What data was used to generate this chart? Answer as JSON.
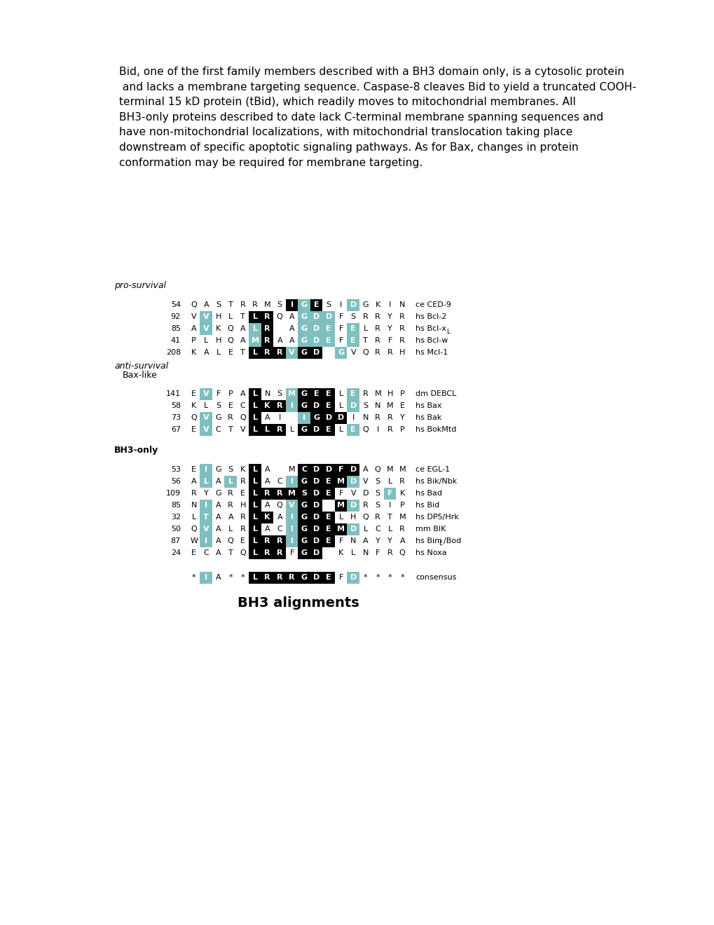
{
  "paragraph": "Bid, one of the first family members described with a BH3 domain only, is a cytosolic protein\n and lacks a membrane targeting sequence. Caspase-8 cleaves Bid to yield a truncated COOH-\nterminal 15 kD protein (tBid), which readily moves to mitochondrial membranes. All\nBH3-only proteins described to date lack C-terminal membrane spanning sequences and\nhave non-mitochondrial localizations, with mitochondrial translocation taking place\ndownstream of specific apoptotic signaling pathways. As for Bax, changes in protein\nconformation may be required for membrane targeting.",
  "title": "BH3 alignments",
  "rows": [
    {
      "num": "54",
      "seq": [
        "Q",
        "A",
        "S",
        "T",
        "R",
        "R",
        "M",
        "S",
        "I",
        "G",
        "E",
        "S",
        "I",
        "D",
        "G",
        "K",
        "I",
        "N"
      ],
      "label": "ce CED-9",
      "colors": [
        "",
        "",
        "",
        "",
        "",
        "",
        "",
        "",
        "k",
        "teal",
        "k",
        "",
        "",
        "teal",
        "",
        "",
        "",
        ""
      ]
    },
    {
      "num": "92",
      "seq": [
        "V",
        "V",
        "H",
        "L",
        "T",
        "L",
        "R",
        "Q",
        "A",
        "G",
        "D",
        "D",
        "F",
        "S",
        "R",
        "R",
        "Y",
        "R"
      ],
      "label": "hs Bcl-2",
      "colors": [
        "",
        "teal",
        "",
        "",
        "",
        "k",
        "k",
        "",
        "",
        "teal",
        "teal",
        "teal",
        "",
        "",
        "",
        "",
        "",
        ""
      ]
    },
    {
      "num": "85",
      "seq": [
        "A",
        "V",
        "K",
        "Q",
        "A",
        "L",
        "R",
        " ",
        "A",
        "G",
        "D",
        "E",
        "F",
        "E",
        "L",
        "R",
        "Y",
        "R"
      ],
      "label": "hs Bcl-xL",
      "colors": [
        "",
        "teal",
        "",
        "",
        "",
        "teal",
        "k",
        "",
        "",
        "teal",
        "teal",
        "teal",
        "",
        "teal",
        "",
        "",
        "",
        ""
      ]
    },
    {
      "num": "41",
      "seq": [
        "P",
        "L",
        "H",
        "Q",
        "A",
        "M",
        "R",
        "A",
        "A",
        "G",
        "D",
        "E",
        "F",
        "E",
        "T",
        "R",
        "F",
        "R"
      ],
      "label": "hs Bcl-w",
      "colors": [
        "",
        "",
        "",
        "",
        "",
        "teal",
        "k",
        "",
        "",
        "teal",
        "teal",
        "teal",
        "",
        "teal",
        "",
        "",
        "",
        ""
      ]
    },
    {
      "num": "208",
      "seq": [
        "K",
        "A",
        "L",
        "E",
        "T",
        "L",
        "R",
        "R",
        "V",
        "G",
        "D",
        " ",
        "G",
        "V",
        "Q",
        "R",
        "R",
        "H"
      ],
      "label": "hs Mcl-1",
      "colors": [
        "",
        "",
        "",
        "",
        "",
        "k",
        "k",
        "k",
        "teal",
        "k",
        "k",
        "",
        "teal",
        "",
        "",
        "",
        "",
        ""
      ]
    },
    {
      "num": "141",
      "seq": [
        "E",
        "V",
        "F",
        "P",
        "A",
        "L",
        "N",
        "S",
        "M",
        "G",
        "E",
        "E",
        "L",
        "E",
        "R",
        "M",
        "H",
        "P"
      ],
      "label": "dm DEBCL",
      "colors": [
        "",
        "teal",
        "",
        "",
        "",
        "k",
        "",
        "",
        "teal",
        "k",
        "k",
        "k",
        "",
        "teal",
        "",
        "",
        "",
        ""
      ]
    },
    {
      "num": "58",
      "seq": [
        "K",
        "L",
        "S",
        "E",
        "C",
        "L",
        "K",
        "R",
        "I",
        "G",
        "D",
        "E",
        "L",
        "D",
        "S",
        "N",
        "M",
        "E"
      ],
      "label": "hs Bax",
      "colors": [
        "",
        "",
        "",
        "",
        "",
        "k",
        "k",
        "k",
        "teal",
        "k",
        "k",
        "k",
        "",
        "teal",
        "",
        "",
        "",
        ""
      ]
    },
    {
      "num": "73",
      "seq": [
        "Q",
        "V",
        "G",
        "R",
        "Q",
        "L",
        "A",
        "I",
        " ",
        "I",
        "G",
        "D",
        "D",
        "I",
        "N",
        "R",
        "R",
        "Y"
      ],
      "label": "hs Bak",
      "colors": [
        "",
        "teal",
        "",
        "",
        "",
        "k",
        "",
        "",
        "",
        "teal",
        "k",
        "k",
        "k",
        "",
        "",
        "",
        "",
        ""
      ]
    },
    {
      "num": "67",
      "seq": [
        "E",
        "V",
        "C",
        "T",
        "V",
        "L",
        "L",
        "R",
        "L",
        "G",
        "D",
        "E",
        "L",
        "E",
        "Q",
        "I",
        "R",
        "P"
      ],
      "label": "hs BokMtd",
      "colors": [
        "",
        "teal",
        "",
        "",
        "",
        "k",
        "k",
        "k",
        "",
        "k",
        "k",
        "k",
        "",
        "teal",
        "",
        "",
        "",
        ""
      ]
    },
    {
      "num": "53",
      "seq": [
        "E",
        "I",
        "G",
        "S",
        "K",
        "L",
        "A",
        " ",
        "M",
        "C",
        "D",
        "D",
        "F",
        "D",
        "A",
        "Q",
        "M",
        "M"
      ],
      "label": "ce EGL-1",
      "colors": [
        "",
        "teal",
        "",
        "",
        "",
        "k",
        "",
        "",
        "",
        "k",
        "k",
        "k",
        "k",
        "k",
        "",
        "",
        "",
        ""
      ]
    },
    {
      "num": "56",
      "seq": [
        "A",
        "L",
        "A",
        "L",
        "R",
        "L",
        "A",
        "C",
        "I",
        "G",
        "D",
        "E",
        "M",
        "D",
        "V",
        "S",
        "L",
        "R"
      ],
      "label": "hs Bik/Nbk",
      "colors": [
        "",
        "teal",
        "",
        "teal",
        "",
        "k",
        "",
        "",
        "teal",
        "k",
        "k",
        "k",
        "k",
        "teal",
        "",
        "",
        "",
        ""
      ]
    },
    {
      "num": "109",
      "seq": [
        "R",
        "Y",
        "G",
        "R",
        "E",
        "L",
        "R",
        "R",
        "M",
        "S",
        "D",
        "E",
        "F",
        "V",
        "D",
        "S",
        "F",
        "K"
      ],
      "label": "hs Bad",
      "colors": [
        "",
        "",
        "",
        "",
        "",
        "k",
        "k",
        "k",
        "k",
        "k",
        "k",
        "k",
        "",
        "",
        "",
        "",
        "teal",
        ""
      ]
    },
    {
      "num": "85",
      "seq": [
        "N",
        "I",
        "A",
        "R",
        "H",
        "L",
        "A",
        "Q",
        "V",
        "G",
        "D",
        " ",
        "M",
        "D",
        "R",
        "S",
        "I",
        "P"
      ],
      "label": "hs Bid",
      "colors": [
        "",
        "teal",
        "",
        "",
        "",
        "k",
        "",
        "",
        "teal",
        "k",
        "k",
        "",
        "k",
        "teal",
        "",
        "",
        "",
        ""
      ]
    },
    {
      "num": "32",
      "seq": [
        "L",
        "T",
        "A",
        "A",
        "R",
        "L",
        "K",
        "A",
        "I",
        "G",
        "D",
        "E",
        "L",
        "H",
        "Q",
        "R",
        "T",
        "M"
      ],
      "label": "hs DP5/Hrk",
      "colors": [
        "",
        "teal",
        "",
        "",
        "",
        "k",
        "k",
        "",
        "teal",
        "k",
        "k",
        "k",
        "",
        "",
        "",
        "",
        "",
        ""
      ]
    },
    {
      "num": "50",
      "seq": [
        "Q",
        "V",
        "A",
        "L",
        "R",
        "L",
        "A",
        "C",
        "I",
        "G",
        "D",
        "E",
        "M",
        "D",
        "L",
        "C",
        "L",
        "R"
      ],
      "label": "mm BIK",
      "colors": [
        "",
        "teal",
        "",
        "",
        "",
        "k",
        "",
        "",
        "teal",
        "k",
        "k",
        "k",
        "k",
        "teal",
        "",
        "",
        "",
        ""
      ]
    },
    {
      "num": "87",
      "seq": [
        "W",
        "I",
        "A",
        "Q",
        "E",
        "L",
        "R",
        "R",
        "I",
        "G",
        "D",
        "E",
        "F",
        "N",
        "A",
        "Y",
        "Y",
        "A"
      ],
      "label": "hs BimL/Bod",
      "colors": [
        "",
        "teal",
        "",
        "",
        "",
        "k",
        "k",
        "k",
        "teal",
        "k",
        "k",
        "k",
        "",
        "",
        "",
        "",
        "",
        ""
      ]
    },
    {
      "num": "24",
      "seq": [
        "E",
        "C",
        "A",
        "T",
        "Q",
        "L",
        "R",
        "R",
        "F",
        "G",
        "D",
        " ",
        "K",
        "L",
        "N",
        "F",
        "R",
        "Q"
      ],
      "label": "hs Noxa",
      "colors": [
        "",
        "",
        "",
        "",
        "",
        "k",
        "k",
        "k",
        "",
        "k",
        "k",
        "",
        "",
        "",
        "",
        "",
        "",
        ""
      ]
    },
    {
      "num": "",
      "seq": [
        "*",
        "I",
        "A",
        "*",
        "*",
        "L",
        "R",
        "R",
        "R",
        "G",
        "D",
        "E",
        "F",
        "D",
        "*",
        "*",
        "*",
        "*"
      ],
      "label": "consensus",
      "colors": [
        "",
        "teal",
        "",
        "",
        "",
        "k",
        "k",
        "k",
        "k",
        "k",
        "k",
        "k",
        "",
        "teal",
        "",
        "",
        "",
        ""
      ]
    }
  ],
  "teal_color": "#7fbfbf",
  "black_color": "#000000"
}
